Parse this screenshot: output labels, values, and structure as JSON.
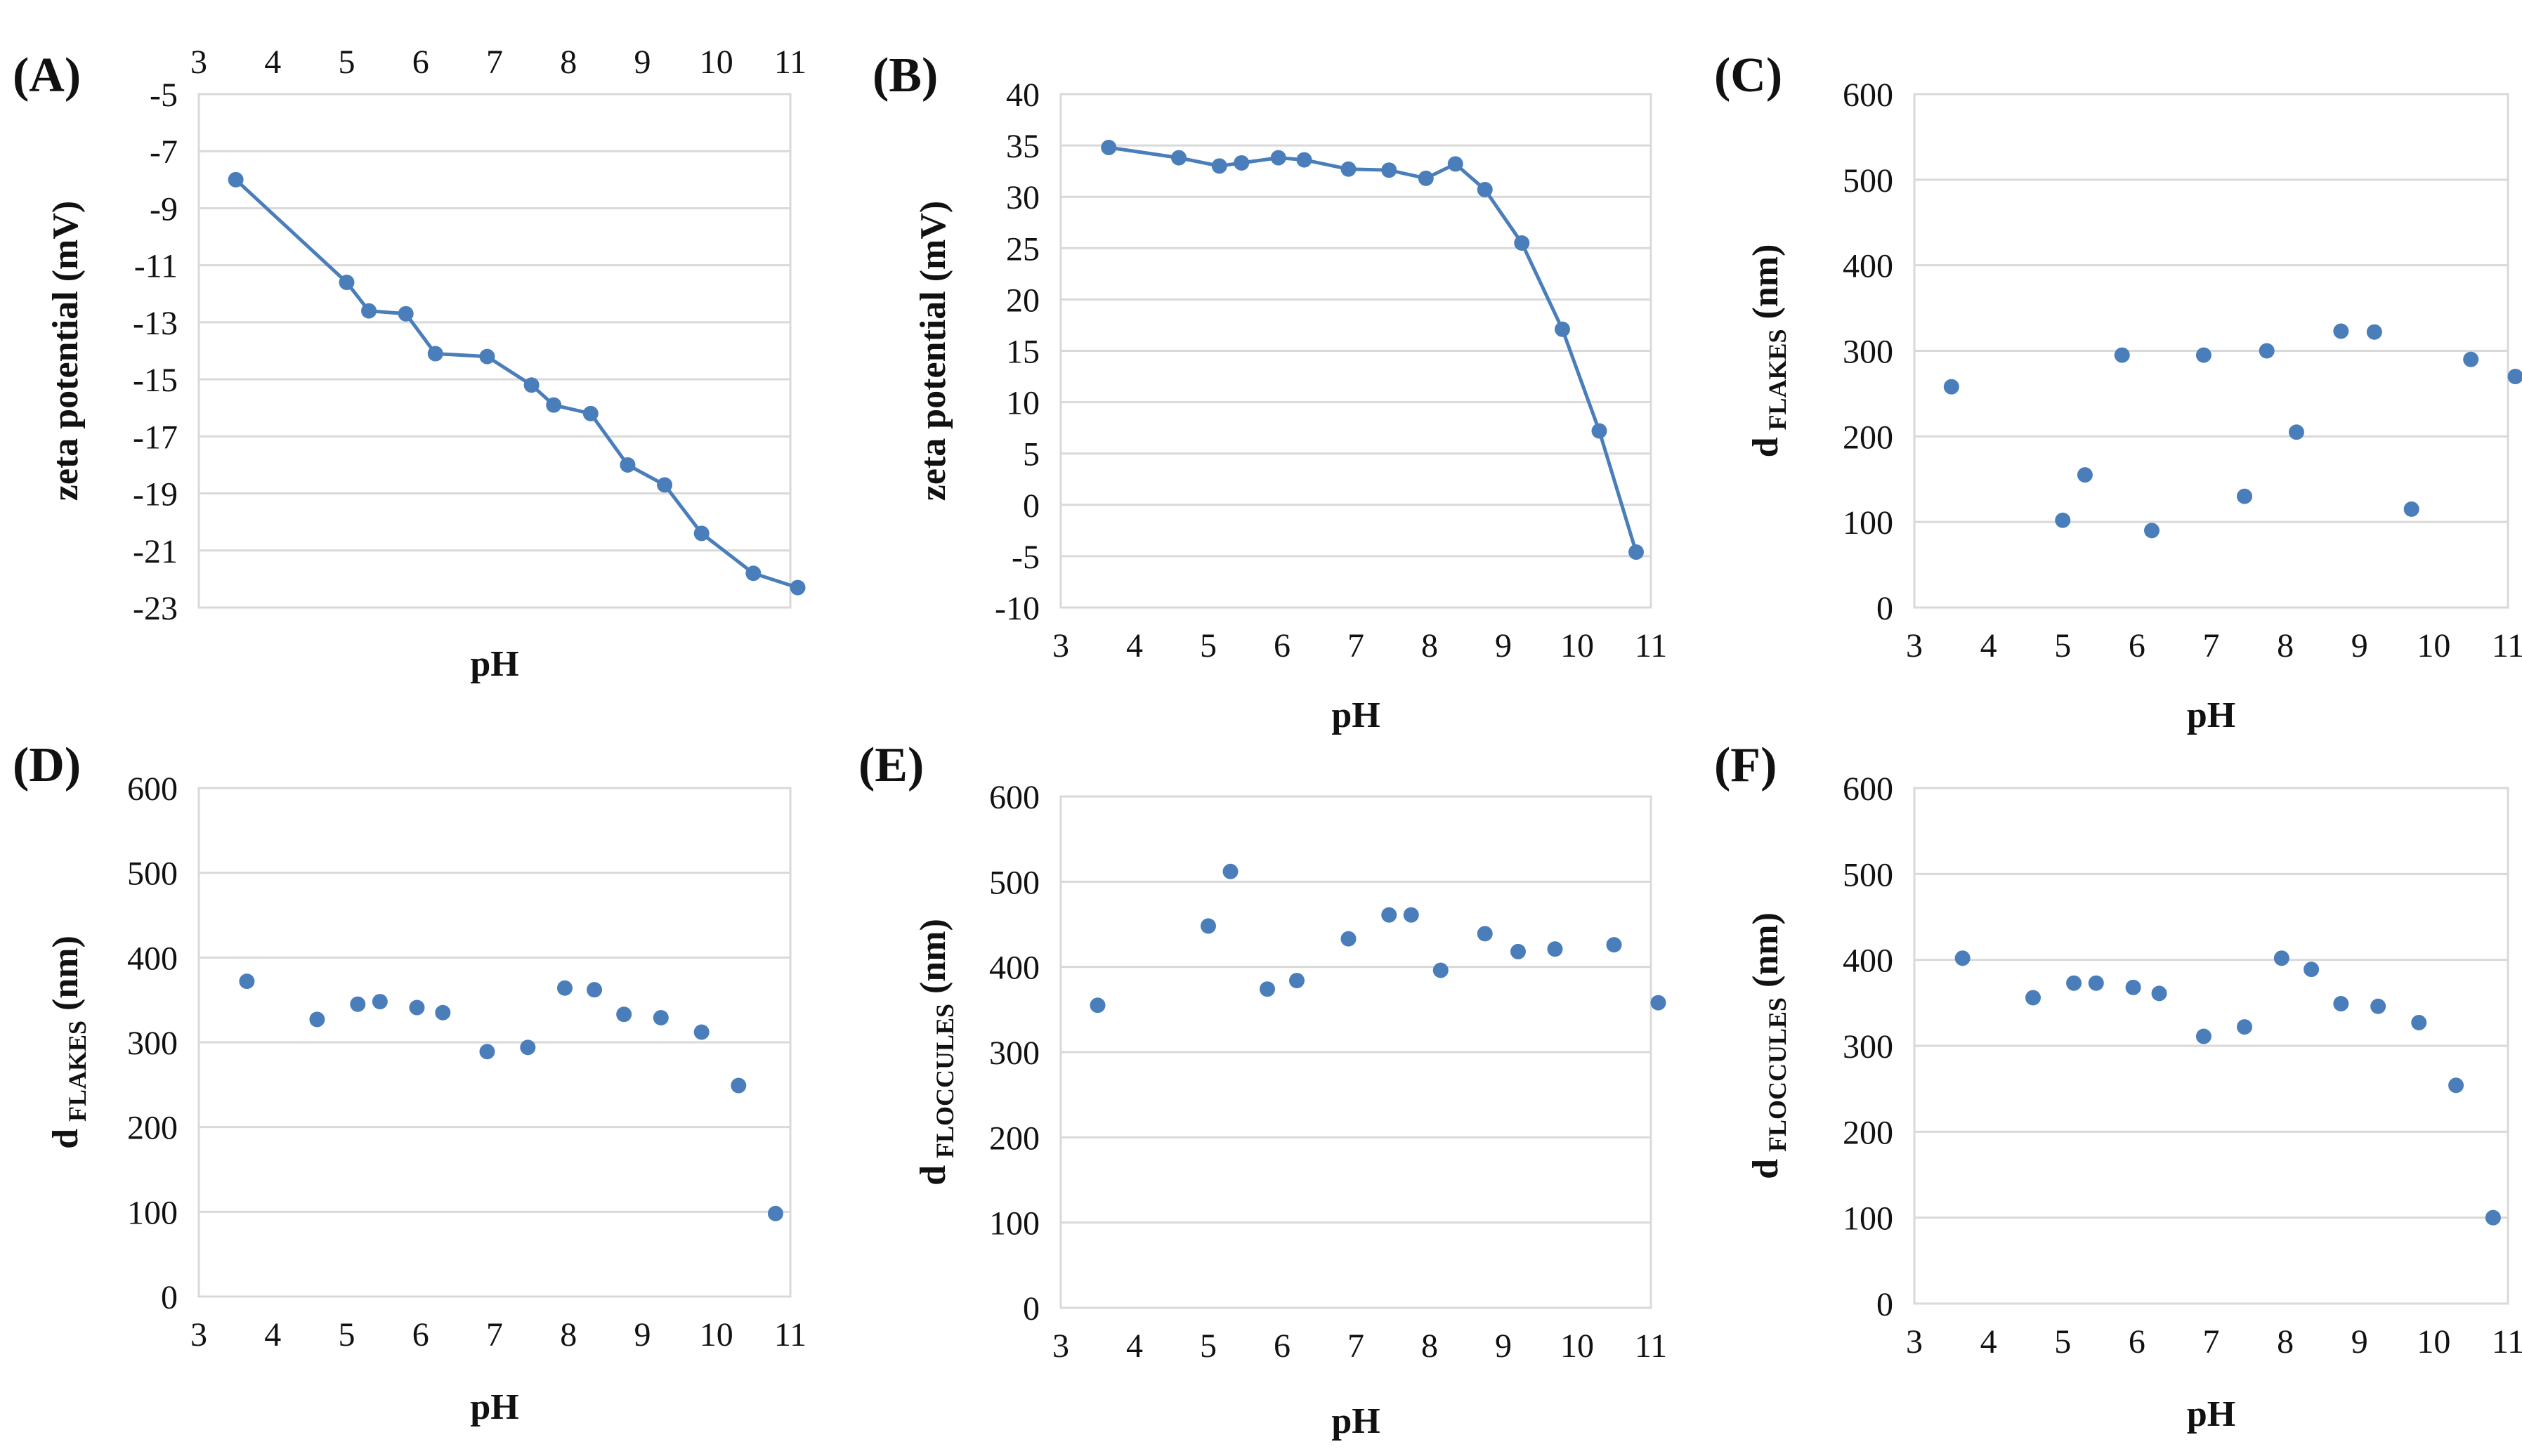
{
  "figure": {
    "colors": {
      "series": "#4a7ebb",
      "grid": "#d9d9d9",
      "text": "#111111",
      "background": "#ffffff"
    }
  },
  "chart_data": [
    {
      "id": "A",
      "panel_label": "(A)",
      "type": "line",
      "title": "",
      "xlabel": "pH",
      "ylabel": "zeta potential (mV)",
      "ylabel_sub": "",
      "xlim": [
        3,
        11
      ],
      "ylim": [
        -23,
        -5
      ],
      "x_axis_position": "top",
      "xticks": [
        3,
        4,
        5,
        6,
        7,
        8,
        9,
        10,
        11
      ],
      "yticks": [
        -5,
        -7,
        -9,
        -11,
        -13,
        -15,
        -17,
        -19,
        -21,
        -23
      ],
      "grid": true,
      "x": [
        3.5,
        5.0,
        5.3,
        5.8,
        6.2,
        6.9,
        7.5,
        7.8,
        8.3,
        8.8,
        9.3,
        9.8,
        10.5,
        11.1
      ],
      "y": [
        -8.0,
        -11.6,
        -12.6,
        -12.7,
        -14.1,
        -14.2,
        -15.2,
        -15.9,
        -16.2,
        -18.0,
        -18.7,
        -20.4,
        -21.8,
        -22.3
      ]
    },
    {
      "id": "B",
      "panel_label": "(B)",
      "type": "line",
      "title": "",
      "xlabel": "pH",
      "ylabel": "zeta potential (mV)",
      "ylabel_sub": "",
      "xlim": [
        3,
        11
      ],
      "ylim": [
        -10,
        40
      ],
      "x_axis_position": "bottom",
      "xticks": [
        3,
        4,
        5,
        6,
        7,
        8,
        9,
        10,
        11
      ],
      "yticks": [
        40,
        35,
        30,
        25,
        20,
        15,
        10,
        5,
        0,
        -5,
        -10
      ],
      "grid": true,
      "x": [
        3.65,
        4.6,
        5.15,
        5.45,
        5.95,
        6.3,
        6.9,
        7.45,
        7.95,
        8.35,
        8.75,
        9.25,
        9.8,
        10.3,
        10.8
      ],
      "y": [
        34.8,
        33.8,
        33.0,
        33.3,
        33.8,
        33.6,
        32.7,
        32.6,
        31.8,
        33.2,
        30.7,
        25.5,
        17.1,
        7.2,
        -4.6
      ]
    },
    {
      "id": "C",
      "panel_label": "(C)",
      "type": "scatter",
      "title": "",
      "xlabel": "pH",
      "ylabel": "d",
      "ylabel_sub": "FLAKES",
      "xlim": [
        3,
        11
      ],
      "ylim": [
        0,
        600
      ],
      "x_axis_position": "bottom",
      "xticks": [
        3,
        4,
        5,
        6,
        7,
        8,
        9,
        10,
        11
      ],
      "yticks": [
        600,
        500,
        400,
        300,
        200,
        100,
        0
      ],
      "grid": true,
      "x": [
        3.5,
        5.0,
        5.3,
        5.8,
        6.2,
        6.9,
        7.45,
        7.75,
        8.15,
        8.75,
        9.2,
        9.7,
        10.5,
        11.1
      ],
      "y": [
        258,
        102,
        155,
        295,
        90,
        295,
        130,
        300,
        205,
        323,
        322,
        115,
        290,
        270
      ]
    },
    {
      "id": "D",
      "panel_label": "(D)",
      "type": "scatter",
      "title": "",
      "xlabel": "pH",
      "ylabel": "d",
      "ylabel_sub": "FLAKES",
      "xlim": [
        3,
        11
      ],
      "ylim": [
        0,
        600
      ],
      "x_axis_position": "bottom",
      "xticks": [
        3,
        4,
        5,
        6,
        7,
        8,
        9,
        10,
        11
      ],
      "yticks": [
        600,
        500,
        400,
        300,
        200,
        100,
        0
      ],
      "grid": true,
      "x": [
        3.65,
        4.6,
        5.15,
        5.45,
        5.95,
        6.3,
        6.9,
        7.45,
        7.95,
        8.35,
        8.75,
        9.25,
        9.8,
        10.3,
        10.8
      ],
      "y": [
        372,
        327,
        345,
        348,
        341,
        335,
        289,
        294,
        364,
        362,
        333,
        329,
        312,
        249,
        98
      ]
    },
    {
      "id": "E",
      "panel_label": "(E)",
      "type": "scatter",
      "title": "",
      "xlabel": "pH",
      "ylabel": "d",
      "ylabel_sub": "FLOCCULES",
      "xlim": [
        3,
        11
      ],
      "ylim": [
        0,
        600
      ],
      "x_axis_position": "bottom",
      "xticks": [
        3,
        4,
        5,
        6,
        7,
        8,
        9,
        10,
        11
      ],
      "yticks": [
        600,
        500,
        400,
        300,
        200,
        100,
        0
      ],
      "grid": true,
      "x": [
        3.5,
        5.0,
        5.3,
        5.8,
        6.2,
        6.9,
        7.45,
        7.75,
        8.15,
        8.75,
        9.2,
        9.7,
        10.5,
        11.1
      ],
      "y": [
        355,
        448,
        512,
        374,
        384,
        433,
        461,
        461,
        396,
        439,
        418,
        421,
        426,
        358
      ]
    },
    {
      "id": "F",
      "panel_label": "(F)",
      "type": "scatter",
      "title": "",
      "xlabel": "pH",
      "ylabel": "d",
      "ylabel_sub": "FLOCCULES",
      "xlim": [
        3,
        11
      ],
      "ylim": [
        0,
        600
      ],
      "x_axis_position": "bottom",
      "xticks": [
        3,
        4,
        5,
        6,
        7,
        8,
        9,
        10,
        11
      ],
      "yticks": [
        600,
        500,
        400,
        300,
        200,
        100,
        0
      ],
      "grid": true,
      "x": [
        3.65,
        4.6,
        5.15,
        5.45,
        5.95,
        6.3,
        6.9,
        7.45,
        7.95,
        8.35,
        8.75,
        9.25,
        9.8,
        10.3,
        10.8
      ],
      "y": [
        402,
        356,
        373,
        373,
        368,
        361,
        311,
        322,
        402,
        389,
        349,
        346,
        327,
        254,
        100
      ]
    }
  ]
}
